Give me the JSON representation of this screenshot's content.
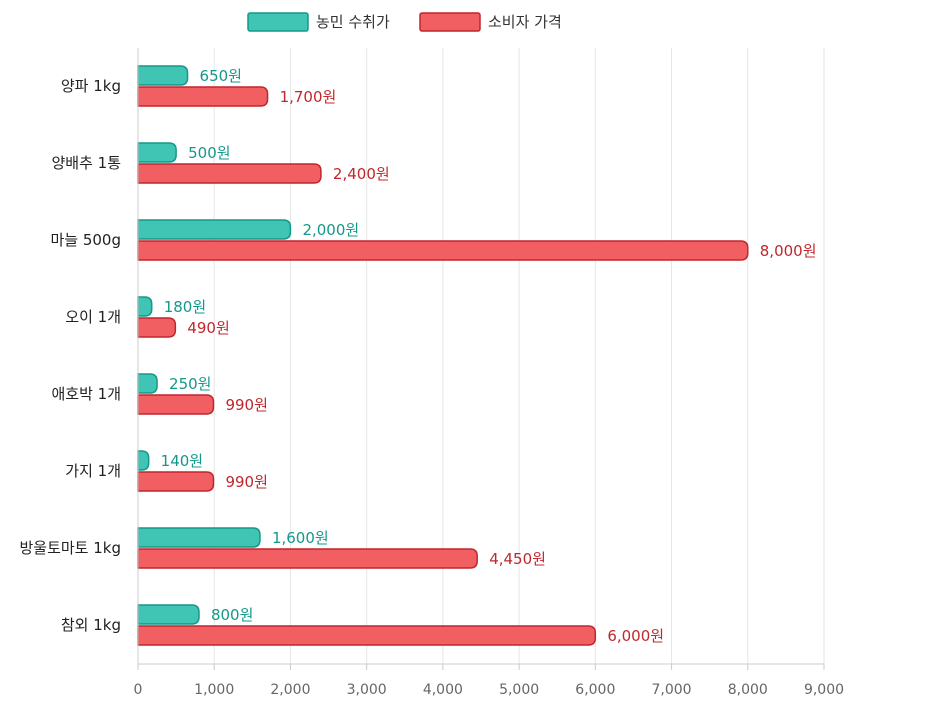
{
  "chart_data": {
    "type": "bar",
    "orientation": "horizontal",
    "categories": [
      "양파 1kg",
      "양배추 1통",
      "마늘 500g",
      "오이 1개",
      "애호박 1개",
      "가지 1개",
      "방울토마토 1kg",
      "참외 1kg"
    ],
    "series": [
      {
        "name": "농민 수취가",
        "values": [
          650,
          500,
          2000,
          180,
          250,
          140,
          1600,
          800
        ],
        "labels": [
          "650원",
          "500원",
          "2,000원",
          "180원",
          "250원",
          "140원",
          "1,600원",
          "800원"
        ]
      },
      {
        "name": "소비자 가격",
        "values": [
          1700,
          2400,
          8000,
          490,
          990,
          990,
          4450,
          6000
        ],
        "labels": [
          "1,700원",
          "2,400원",
          "8,000원",
          "490원",
          "990원",
          "990원",
          "4,450원",
          "6,000원"
        ]
      }
    ],
    "xlim": [
      0,
      9000
    ],
    "xticks": [
      0,
      1000,
      2000,
      3000,
      4000,
      5000,
      6000,
      7000,
      8000,
      9000
    ],
    "xtick_labels": [
      "0",
      "1,000",
      "2,000",
      "3,000",
      "4,000",
      "5,000",
      "6,000",
      "7,000",
      "8,000",
      "9,000"
    ],
    "grid": true,
    "legend_position": "top-center",
    "colors": {
      "farmer_fill": "#40c4b4",
      "farmer_stroke": "#13988a",
      "consumer_fill": "#f25f62",
      "consumer_stroke": "#c0272d",
      "grid": "#e6e6e6"
    }
  }
}
